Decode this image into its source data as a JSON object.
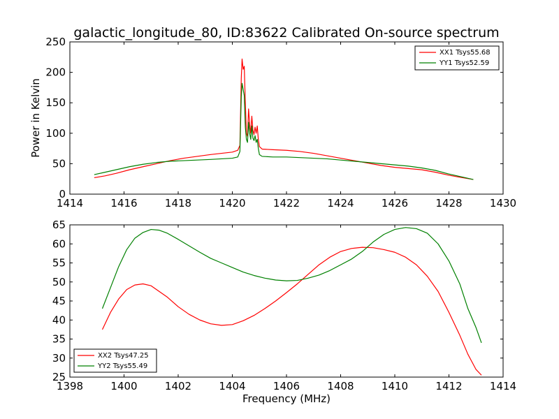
{
  "chart_data": [
    {
      "type": "line",
      "title": "galactic_longitude_80, ID:83622 Calibrated On-source spectrum",
      "xlabel": "",
      "ylabel": "Power in Kelvin",
      "xlim": [
        1414,
        1430
      ],
      "ylim": [
        0,
        250
      ],
      "xticks": [
        1414,
        1416,
        1418,
        1420,
        1422,
        1424,
        1426,
        1428,
        1430
      ],
      "yticks": [
        0,
        50,
        100,
        150,
        200,
        250
      ],
      "legend_position": "top-right",
      "series": [
        {
          "name": "XX1 Tsys55.68",
          "color": "#ff0000",
          "points": [
            [
              1414.9,
              27
            ],
            [
              1415.3,
              30
            ],
            [
              1415.7,
              34
            ],
            [
              1416.2,
              40
            ],
            [
              1416.7,
              45
            ],
            [
              1417.2,
              50
            ],
            [
              1417.7,
              55
            ],
            [
              1418.2,
              59
            ],
            [
              1418.7,
              62
            ],
            [
              1419.2,
              65
            ],
            [
              1419.6,
              67
            ],
            [
              1420.0,
              69
            ],
            [
              1420.2,
              72
            ],
            [
              1420.28,
              80
            ],
            [
              1420.33,
              190
            ],
            [
              1420.36,
              222
            ],
            [
              1420.4,
              205
            ],
            [
              1420.44,
              210
            ],
            [
              1420.48,
              150
            ],
            [
              1420.52,
              100
            ],
            [
              1420.56,
              95
            ],
            [
              1420.6,
              140
            ],
            [
              1420.64,
              115
            ],
            [
              1420.68,
              100
            ],
            [
              1420.72,
              128
            ],
            [
              1420.76,
              105
            ],
            [
              1420.8,
              98
            ],
            [
              1420.84,
              110
            ],
            [
              1420.88,
              100
            ],
            [
              1420.92,
              112
            ],
            [
              1420.96,
              90
            ],
            [
              1421.0,
              78
            ],
            [
              1421.1,
              74
            ],
            [
              1421.5,
              73
            ],
            [
              1422.0,
              72
            ],
            [
              1422.5,
              70
            ],
            [
              1423.0,
              67
            ],
            [
              1423.5,
              63
            ],
            [
              1424.0,
              59
            ],
            [
              1424.5,
              55
            ],
            [
              1425.0,
              51
            ],
            [
              1425.5,
              47
            ],
            [
              1426.0,
              44
            ],
            [
              1426.5,
              42
            ],
            [
              1427.0,
              40
            ],
            [
              1427.5,
              36
            ],
            [
              1428.0,
              31
            ],
            [
              1428.5,
              27
            ],
            [
              1428.9,
              24
            ]
          ]
        },
        {
          "name": "YY1 Tsys52.59",
          "color": "#008000",
          "points": [
            [
              1414.9,
              32
            ],
            [
              1415.3,
              36
            ],
            [
              1415.7,
              40
            ],
            [
              1416.2,
              45
            ],
            [
              1416.7,
              49
            ],
            [
              1417.2,
              52
            ],
            [
              1417.7,
              54
            ],
            [
              1418.2,
              55
            ],
            [
              1418.7,
              56
            ],
            [
              1419.2,
              57
            ],
            [
              1419.6,
              58
            ],
            [
              1420.0,
              59
            ],
            [
              1420.2,
              61
            ],
            [
              1420.28,
              70
            ],
            [
              1420.33,
              160
            ],
            [
              1420.36,
              182
            ],
            [
              1420.4,
              172
            ],
            [
              1420.44,
              162
            ],
            [
              1420.48,
              110
            ],
            [
              1420.52,
              90
            ],
            [
              1420.56,
              85
            ],
            [
              1420.6,
              118
            ],
            [
              1420.64,
              100
            ],
            [
              1420.68,
              90
            ],
            [
              1420.72,
              112
            ],
            [
              1420.76,
              92
            ],
            [
              1420.8,
              88
            ],
            [
              1420.84,
              96
            ],
            [
              1420.88,
              85
            ],
            [
              1420.92,
              90
            ],
            [
              1420.96,
              75
            ],
            [
              1421.0,
              65
            ],
            [
              1421.1,
              62
            ],
            [
              1421.5,
              61
            ],
            [
              1422.0,
              61
            ],
            [
              1422.5,
              60
            ],
            [
              1423.0,
              59
            ],
            [
              1423.5,
              58
            ],
            [
              1424.0,
              56
            ],
            [
              1424.5,
              54
            ],
            [
              1425.0,
              52
            ],
            [
              1425.5,
              50
            ],
            [
              1426.0,
              48
            ],
            [
              1426.5,
              46
            ],
            [
              1427.0,
              43
            ],
            [
              1427.5,
              39
            ],
            [
              1428.0,
              33
            ],
            [
              1428.5,
              28
            ],
            [
              1428.9,
              24
            ]
          ]
        }
      ]
    },
    {
      "type": "line",
      "title": "",
      "xlabel": "Frequency (MHz)",
      "ylabel": "",
      "xlim": [
        1398,
        1414
      ],
      "ylim": [
        25,
        65
      ],
      "xticks": [
        1398,
        1400,
        1402,
        1404,
        1406,
        1408,
        1410,
        1412,
        1414
      ],
      "yticks": [
        25,
        30,
        35,
        40,
        45,
        50,
        55,
        60,
        65
      ],
      "legend_position": "bottom-left",
      "series": [
        {
          "name": "XX2 Tsys47.25",
          "color": "#ff0000",
          "points": [
            [
              1399.2,
              37.5
            ],
            [
              1399.5,
              42
            ],
            [
              1399.8,
              45.5
            ],
            [
              1400.1,
              48
            ],
            [
              1400.4,
              49.2
            ],
            [
              1400.7,
              49.5
            ],
            [
              1401.0,
              49
            ],
            [
              1401.3,
              47.5
            ],
            [
              1401.6,
              46
            ],
            [
              1402.0,
              43.5
            ],
            [
              1402.4,
              41.5
            ],
            [
              1402.8,
              40
            ],
            [
              1403.2,
              39
            ],
            [
              1403.6,
              38.6
            ],
            [
              1404.0,
              38.8
            ],
            [
              1404.4,
              39.8
            ],
            [
              1404.8,
              41.2
            ],
            [
              1405.2,
              43
            ],
            [
              1405.6,
              45
            ],
            [
              1406.0,
              47.2
            ],
            [
              1406.4,
              49.5
            ],
            [
              1406.8,
              52
            ],
            [
              1407.2,
              54.5
            ],
            [
              1407.6,
              56.5
            ],
            [
              1408.0,
              58
            ],
            [
              1408.4,
              58.8
            ],
            [
              1408.8,
              59.1
            ],
            [
              1409.2,
              59
            ],
            [
              1409.6,
              58.5
            ],
            [
              1410.0,
              57.8
            ],
            [
              1410.4,
              56.5
            ],
            [
              1410.8,
              54.5
            ],
            [
              1411.2,
              51.5
            ],
            [
              1411.6,
              47.5
            ],
            [
              1412.0,
              42
            ],
            [
              1412.4,
              36
            ],
            [
              1412.7,
              31
            ],
            [
              1413.0,
              27
            ],
            [
              1413.2,
              25.5
            ]
          ]
        },
        {
          "name": "YY2 Tsys55.49",
          "color": "#008000",
          "points": [
            [
              1399.2,
              43
            ],
            [
              1399.5,
              48.5
            ],
            [
              1399.8,
              54
            ],
            [
              1400.1,
              58.5
            ],
            [
              1400.4,
              61.5
            ],
            [
              1400.7,
              63
            ],
            [
              1401.0,
              63.8
            ],
            [
              1401.3,
              63.6
            ],
            [
              1401.6,
              62.8
            ],
            [
              1402.0,
              61.2
            ],
            [
              1402.4,
              59.5
            ],
            [
              1402.8,
              57.8
            ],
            [
              1403.2,
              56.2
            ],
            [
              1403.6,
              55
            ],
            [
              1404.0,
              53.8
            ],
            [
              1404.4,
              52.6
            ],
            [
              1404.8,
              51.7
            ],
            [
              1405.2,
              51
            ],
            [
              1405.6,
              50.5
            ],
            [
              1406.0,
              50.3
            ],
            [
              1406.4,
              50.4
            ],
            [
              1406.8,
              51
            ],
            [
              1407.2,
              51.8
            ],
            [
              1407.6,
              53
            ],
            [
              1408.0,
              54.5
            ],
            [
              1408.4,
              56
            ],
            [
              1408.8,
              58
            ],
            [
              1409.2,
              60.5
            ],
            [
              1409.6,
              62.5
            ],
            [
              1410.0,
              63.8
            ],
            [
              1410.4,
              64.3
            ],
            [
              1410.8,
              64
            ],
            [
              1411.2,
              62.8
            ],
            [
              1411.6,
              60
            ],
            [
              1412.0,
              55.5
            ],
            [
              1412.4,
              49.5
            ],
            [
              1412.7,
              43
            ],
            [
              1413.0,
              38
            ],
            [
              1413.2,
              34
            ]
          ]
        }
      ]
    }
  ]
}
